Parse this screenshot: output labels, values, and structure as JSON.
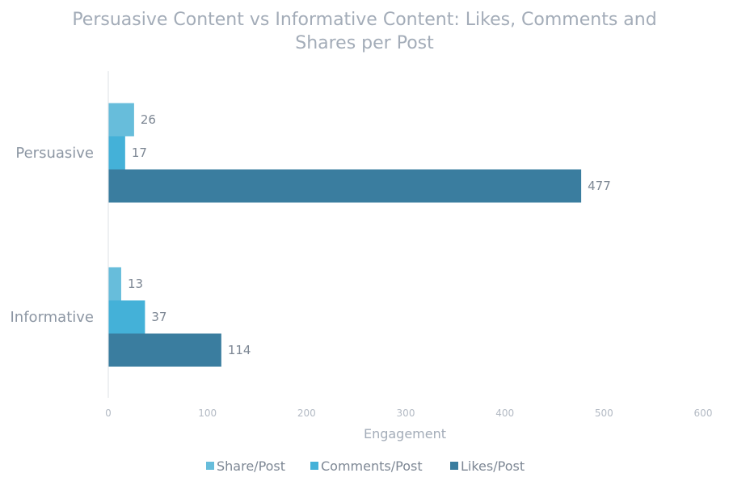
{
  "chart_data": {
    "type": "bar",
    "orientation": "horizontal",
    "title_lines": [
      "Persuasive Content vs Informative Content: Likes, Comments and",
      "Shares per Post"
    ],
    "xlabel": "Engagement",
    "ylabel": "",
    "xlim": [
      0,
      600
    ],
    "xticks": [
      "0",
      "100",
      "200",
      "300",
      "400",
      "500",
      "600"
    ],
    "categories": [
      "Persuasive",
      "Informative"
    ],
    "series": [
      {
        "name": "Share/Post",
        "color": "#67bddb",
        "values": [
          26,
          13
        ]
      },
      {
        "name": "Comments/Post",
        "color": "#44b1d8",
        "values": [
          17,
          37
        ]
      },
      {
        "name": "Likes/Post",
        "color": "#3a7d9f",
        "values": [
          477,
          114
        ]
      }
    ],
    "grid": false,
    "legend_position": "bottom"
  }
}
